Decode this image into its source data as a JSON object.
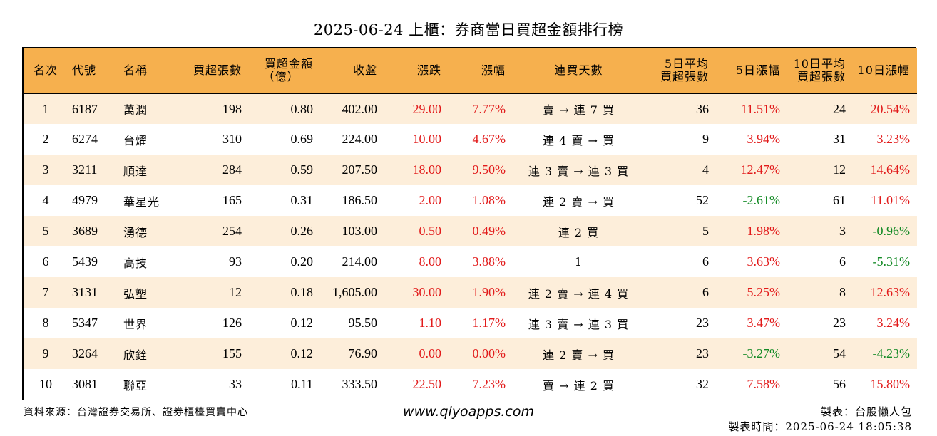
{
  "title": "2025-06-24 上櫃：券商當日買超金額排行榜",
  "headers": {
    "rank": "名次",
    "code": "代號",
    "name": "名稱",
    "net_shares": "買超張數",
    "net_amount_1": "買超金額",
    "net_amount_2": "（億）",
    "close": "收盤",
    "change": "漲跌",
    "change_pct": "漲幅",
    "streak": "連買天數",
    "avg5_1": "5日平均",
    "avg5_2": "買超張數",
    "chg5": "5日漲幅",
    "avg10_1": "10日平均",
    "avg10_2": "買超張數",
    "chg10": "10日漲幅"
  },
  "colors": {
    "header_bg": "#f6b04e",
    "stripe_bg": "#fdeeda",
    "up": "#e21b1b",
    "down": "#138a25"
  },
  "rows": [
    {
      "rank": "1",
      "code": "6187",
      "name": "萬潤",
      "net_shares": "198",
      "net_amount": "0.80",
      "close": "402.00",
      "change": "29.00",
      "change_pct": "7.77%",
      "streak": "賣 → 連 7 買",
      "avg5": "36",
      "chg5": "11.51%",
      "avg10": "24",
      "chg10": "20.54%"
    },
    {
      "rank": "2",
      "code": "6274",
      "name": "台燿",
      "net_shares": "310",
      "net_amount": "0.69",
      "close": "224.00",
      "change": "10.00",
      "change_pct": "4.67%",
      "streak": "連 4 賣 → 買",
      "avg5": "9",
      "chg5": "3.94%",
      "avg10": "31",
      "chg10": "3.23%"
    },
    {
      "rank": "3",
      "code": "3211",
      "name": "順達",
      "net_shares": "284",
      "net_amount": "0.59",
      "close": "207.50",
      "change": "18.00",
      "change_pct": "9.50%",
      "streak": "連 3 賣 → 連 3 買",
      "avg5": "4",
      "chg5": "12.47%",
      "avg10": "12",
      "chg10": "14.64%"
    },
    {
      "rank": "4",
      "code": "4979",
      "name": "華星光",
      "net_shares": "165",
      "net_amount": "0.31",
      "close": "186.50",
      "change": "2.00",
      "change_pct": "1.08%",
      "streak": "連 2 賣 → 買",
      "avg5": "52",
      "chg5": "-2.61%",
      "avg10": "61",
      "chg10": "11.01%"
    },
    {
      "rank": "5",
      "code": "3689",
      "name": "湧德",
      "net_shares": "254",
      "net_amount": "0.26",
      "close": "103.00",
      "change": "0.50",
      "change_pct": "0.49%",
      "streak": "連 2 買",
      "avg5": "5",
      "chg5": "1.98%",
      "avg10": "3",
      "chg10": "-0.96%"
    },
    {
      "rank": "6",
      "code": "5439",
      "name": "高技",
      "net_shares": "93",
      "net_amount": "0.20",
      "close": "214.00",
      "change": "8.00",
      "change_pct": "3.88%",
      "streak": "1",
      "avg5": "6",
      "chg5": "3.63%",
      "avg10": "6",
      "chg10": "-5.31%"
    },
    {
      "rank": "7",
      "code": "3131",
      "name": "弘塑",
      "net_shares": "12",
      "net_amount": "0.18",
      "close": "1,605.00",
      "change": "30.00",
      "change_pct": "1.90%",
      "streak": "連 2 賣 → 連 4 買",
      "avg5": "6",
      "chg5": "5.25%",
      "avg10": "8",
      "chg10": "12.63%"
    },
    {
      "rank": "8",
      "code": "5347",
      "name": "世界",
      "net_shares": "126",
      "net_amount": "0.12",
      "close": "95.50",
      "change": "1.10",
      "change_pct": "1.17%",
      "streak": "連 3 賣 → 連 3 買",
      "avg5": "23",
      "chg5": "3.47%",
      "avg10": "23",
      "chg10": "3.24%"
    },
    {
      "rank": "9",
      "code": "3264",
      "name": "欣銓",
      "net_shares": "155",
      "net_amount": "0.12",
      "close": "76.90",
      "change": "0.00",
      "change_pct": "0.00%",
      "streak": "連 2 賣 → 買",
      "avg5": "23",
      "chg5": "-3.27%",
      "avg10": "54",
      "chg10": "-4.23%"
    },
    {
      "rank": "10",
      "code": "3081",
      "name": "聯亞",
      "net_shares": "33",
      "net_amount": "0.11",
      "close": "333.50",
      "change": "22.50",
      "change_pct": "7.23%",
      "streak": "賣 → 連 2 買",
      "avg5": "32",
      "chg5": "7.58%",
      "avg10": "56",
      "chg10": "15.80%"
    }
  ],
  "footer": {
    "source": "資料來源：台灣證券交易所、證券櫃檯買賣中心",
    "url": "www.qiyoapps.com",
    "maker": "製表：台股懶人包",
    "time": "製表時間：2025-06-24 18:05:38"
  }
}
